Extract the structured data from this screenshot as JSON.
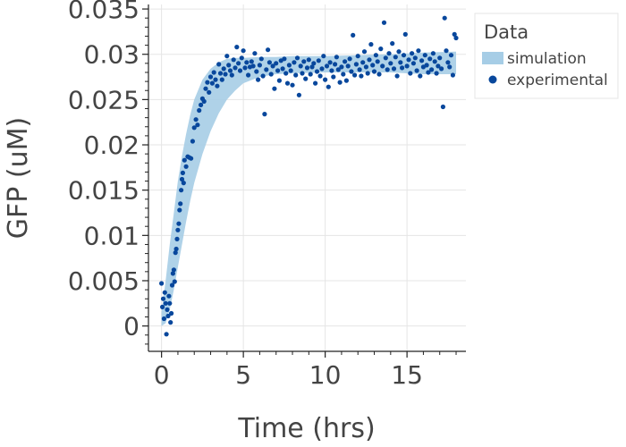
{
  "chart_data": {
    "type": "scatter",
    "title": "",
    "xlabel": "Time (hrs)",
    "ylabel": "GFP (uM)",
    "xlim": [
      -0.8,
      18.6
    ],
    "ylim": [
      -0.0028,
      0.0355
    ],
    "x_ticks": [
      0,
      5,
      10,
      15
    ],
    "x_tick_labels": [
      "0",
      "5",
      "10",
      "15"
    ],
    "y_ticks": [
      0,
      0.005,
      0.01,
      0.015,
      0.02,
      0.025,
      0.03,
      0.035
    ],
    "y_tick_labels": [
      "0",
      "0.005",
      "0.01",
      "0.015",
      "0.02",
      "0.025",
      "0.03",
      "0.035"
    ],
    "grid": true,
    "legend": {
      "title": "Data",
      "position": "right",
      "entries": [
        {
          "label": "simulation",
          "marker": "band"
        },
        {
          "label": "experimental",
          "marker": "circle"
        }
      ]
    },
    "colors": {
      "simulation": "#a6cde6",
      "experimental": "#08479c"
    },
    "series": [
      {
        "name": "simulation",
        "type": "band",
        "x": [
          0,
          0.25,
          0.5,
          0.75,
          1.0,
          1.25,
          1.5,
          1.75,
          2.0,
          2.5,
          3.0,
          3.5,
          4.0,
          4.5,
          5.0,
          6.0,
          7.0,
          8.0,
          10.0,
          12.0,
          14.0,
          16.0,
          18.0
        ],
        "lower": [
          0.0,
          0.0003,
          0.0018,
          0.004,
          0.0065,
          0.009,
          0.0115,
          0.0138,
          0.0158,
          0.019,
          0.0215,
          0.0235,
          0.025,
          0.026,
          0.0268,
          0.0275,
          0.0278,
          0.0279,
          0.028,
          0.028,
          0.028,
          0.0278,
          0.0278
        ],
        "upper": [
          0.0015,
          0.005,
          0.009,
          0.0125,
          0.016,
          0.0188,
          0.0212,
          0.0233,
          0.025,
          0.0272,
          0.0284,
          0.0291,
          0.0295,
          0.0296,
          0.0296,
          0.0297,
          0.0297,
          0.0298,
          0.0298,
          0.0299,
          0.03,
          0.0302,
          0.0303
        ]
      },
      {
        "name": "experimental",
        "type": "scatter",
        "points": [
          [
            0.0,
            0.0047
          ],
          [
            0.05,
            0.0021
          ],
          [
            0.1,
            0.003
          ],
          [
            0.15,
            0.0008
          ],
          [
            0.2,
            0.0037
          ],
          [
            0.25,
            0.0025
          ],
          [
            0.3,
            -0.0009
          ],
          [
            0.35,
            0.0018
          ],
          [
            0.4,
            0.0011
          ],
          [
            0.45,
            0.0033
          ],
          [
            0.5,
            0.0025
          ],
          [
            0.55,
            0.0004
          ],
          [
            0.6,
            0.0014
          ],
          [
            0.65,
            0.0045
          ],
          [
            0.7,
            0.0058
          ],
          [
            0.75,
            0.0062
          ],
          [
            0.8,
            0.0049
          ],
          [
            0.85,
            0.0081
          ],
          [
            0.9,
            0.0085
          ],
          [
            0.95,
            0.0096
          ],
          [
            1.0,
            0.0106
          ],
          [
            1.05,
            0.0113
          ],
          [
            1.1,
            0.0128
          ],
          [
            1.15,
            0.0135
          ],
          [
            1.2,
            0.015
          ],
          [
            1.25,
            0.0162
          ],
          [
            1.3,
            0.0169
          ],
          [
            1.35,
            0.0158
          ],
          [
            1.4,
            0.0183
          ],
          [
            1.5,
            0.0176
          ],
          [
            1.6,
            0.0187
          ],
          [
            1.7,
            0.0186
          ],
          [
            1.8,
            0.0185
          ],
          [
            1.9,
            0.0204
          ],
          [
            2.0,
            0.0219
          ],
          [
            2.1,
            0.0228
          ],
          [
            2.2,
            0.0222
          ],
          [
            2.3,
            0.0238
          ],
          [
            2.4,
            0.0244
          ],
          [
            2.5,
            0.0251
          ],
          [
            2.6,
            0.0248
          ],
          [
            2.7,
            0.0262
          ],
          [
            2.8,
            0.0269
          ],
          [
            2.9,
            0.0258
          ],
          [
            3.0,
            0.0275
          ],
          [
            3.1,
            0.0268
          ],
          [
            3.2,
            0.028
          ],
          [
            3.3,
            0.0272
          ],
          [
            3.4,
            0.0265
          ],
          [
            3.5,
            0.0289
          ],
          [
            3.6,
            0.0279
          ],
          [
            3.7,
            0.0272
          ],
          [
            3.8,
            0.0284
          ],
          [
            3.9,
            0.0278
          ],
          [
            4.0,
            0.0298
          ],
          [
            4.1,
            0.0288
          ],
          [
            4.2,
            0.0282
          ],
          [
            4.3,
            0.0277
          ],
          [
            4.4,
            0.0294
          ],
          [
            4.5,
            0.0285
          ],
          [
            4.6,
            0.0308
          ],
          [
            4.7,
            0.029
          ],
          [
            4.8,
            0.0282
          ],
          [
            4.9,
            0.0296
          ],
          [
            5.0,
            0.0304
          ],
          [
            5.1,
            0.0285
          ],
          [
            5.2,
            0.0291
          ],
          [
            5.3,
            0.0277
          ],
          [
            5.4,
            0.0286
          ],
          [
            5.5,
            0.0292
          ],
          [
            5.6,
            0.0287
          ],
          [
            5.7,
            0.0301
          ],
          [
            5.8,
            0.0281
          ],
          [
            5.9,
            0.0272
          ],
          [
            6.0,
            0.0288
          ],
          [
            6.1,
            0.0295
          ],
          [
            6.2,
            0.0276
          ],
          [
            6.3,
            0.0234
          ],
          [
            6.4,
            0.0283
          ],
          [
            6.5,
            0.0305
          ],
          [
            6.6,
            0.0291
          ],
          [
            6.7,
            0.0278
          ],
          [
            6.8,
            0.0287
          ],
          [
            6.9,
            0.0262
          ],
          [
            7.0,
            0.029
          ],
          [
            7.1,
            0.0282
          ],
          [
            7.2,
            0.0271
          ],
          [
            7.3,
            0.0293
          ],
          [
            7.4,
            0.0284
          ],
          [
            7.5,
            0.0295
          ],
          [
            7.6,
            0.0279
          ],
          [
            7.7,
            0.0268
          ],
          [
            7.8,
            0.0288
          ],
          [
            7.9,
            0.0282
          ],
          [
            8.0,
            0.0266
          ],
          [
            8.1,
            0.0291
          ],
          [
            8.2,
            0.0277
          ],
          [
            8.3,
            0.0296
          ],
          [
            8.4,
            0.0255
          ],
          [
            8.5,
            0.0287
          ],
          [
            8.6,
            0.0279
          ],
          [
            8.7,
            0.0292
          ],
          [
            8.8,
            0.0273
          ],
          [
            8.9,
            0.0285
          ],
          [
            9.0,
            0.0294
          ],
          [
            9.1,
            0.0278
          ],
          [
            9.2,
            0.0286
          ],
          [
            9.3,
            0.029
          ],
          [
            9.4,
            0.0268
          ],
          [
            9.5,
            0.0281
          ],
          [
            9.6,
            0.0293
          ],
          [
            9.7,
            0.0276
          ],
          [
            9.8,
            0.0284
          ],
          [
            9.9,
            0.0298
          ],
          [
            10.0,
            0.0272
          ],
          [
            10.1,
            0.0287
          ],
          [
            10.2,
            0.0264
          ],
          [
            10.3,
            0.0291
          ],
          [
            10.4,
            0.0282
          ],
          [
            10.5,
            0.0275
          ],
          [
            10.6,
            0.0289
          ],
          [
            10.7,
            0.0297
          ],
          [
            10.8,
            0.0283
          ],
          [
            10.9,
            0.0269
          ],
          [
            11.0,
            0.0286
          ],
          [
            11.1,
            0.0278
          ],
          [
            11.2,
            0.0292
          ],
          [
            11.3,
            0.0271
          ],
          [
            11.4,
            0.0287
          ],
          [
            11.5,
            0.0295
          ],
          [
            11.6,
            0.0281
          ],
          [
            11.7,
            0.0321
          ],
          [
            11.8,
            0.0277
          ],
          [
            11.9,
            0.0289
          ],
          [
            12.0,
            0.0298
          ],
          [
            12.1,
            0.0283
          ],
          [
            12.2,
            0.0276
          ],
          [
            12.3,
            0.0291
          ],
          [
            12.4,
            0.0303
          ],
          [
            12.5,
            0.0286
          ],
          [
            12.6,
            0.0279
          ],
          [
            12.7,
            0.0294
          ],
          [
            12.8,
            0.0311
          ],
          [
            12.9,
            0.0288
          ],
          [
            13.0,
            0.0281
          ],
          [
            13.1,
            0.0299
          ],
          [
            13.2,
            0.0292
          ],
          [
            13.3,
            0.0278
          ],
          [
            13.4,
            0.0306
          ],
          [
            13.5,
            0.0287
          ],
          [
            13.6,
            0.0335
          ],
          [
            13.7,
            0.0296
          ],
          [
            13.8,
            0.0283
          ],
          [
            13.9,
            0.0301
          ],
          [
            14.0,
            0.029
          ],
          [
            14.1,
            0.0312
          ],
          [
            14.2,
            0.0284
          ],
          [
            14.3,
            0.0297
          ],
          [
            14.4,
            0.0276
          ],
          [
            14.5,
            0.0303
          ],
          [
            14.6,
            0.0291
          ],
          [
            14.7,
            0.0285
          ],
          [
            14.8,
            0.0299
          ],
          [
            14.9,
            0.0322
          ],
          [
            15.0,
            0.0287
          ],
          [
            15.1,
            0.0294
          ],
          [
            15.2,
            0.0279
          ],
          [
            15.3,
            0.0301
          ],
          [
            15.4,
            0.029
          ],
          [
            15.5,
            0.0296
          ],
          [
            15.6,
            0.0282
          ],
          [
            15.7,
            0.0304
          ],
          [
            15.8,
            0.0276
          ],
          [
            15.9,
            0.0293
          ],
          [
            16.0,
            0.0286
          ],
          [
            16.1,
            0.0299
          ],
          [
            16.2,
            0.0288
          ],
          [
            16.3,
            0.028
          ],
          [
            16.4,
            0.0295
          ],
          [
            16.5,
            0.0283
          ],
          [
            16.6,
            0.0301
          ],
          [
            16.7,
            0.0292
          ],
          [
            16.8,
            0.0279
          ],
          [
            16.9,
            0.0287
          ],
          [
            17.0,
            0.0296
          ],
          [
            17.1,
            0.0284
          ],
          [
            17.2,
            0.0242
          ],
          [
            17.3,
            0.034
          ],
          [
            17.4,
            0.0304
          ],
          [
            17.5,
            0.0291
          ],
          [
            17.6,
            0.0286
          ],
          [
            17.7,
            0.0299
          ],
          [
            17.8,
            0.0277
          ],
          [
            17.9,
            0.0322
          ],
          [
            18.0,
            0.0318
          ]
        ]
      }
    ]
  }
}
